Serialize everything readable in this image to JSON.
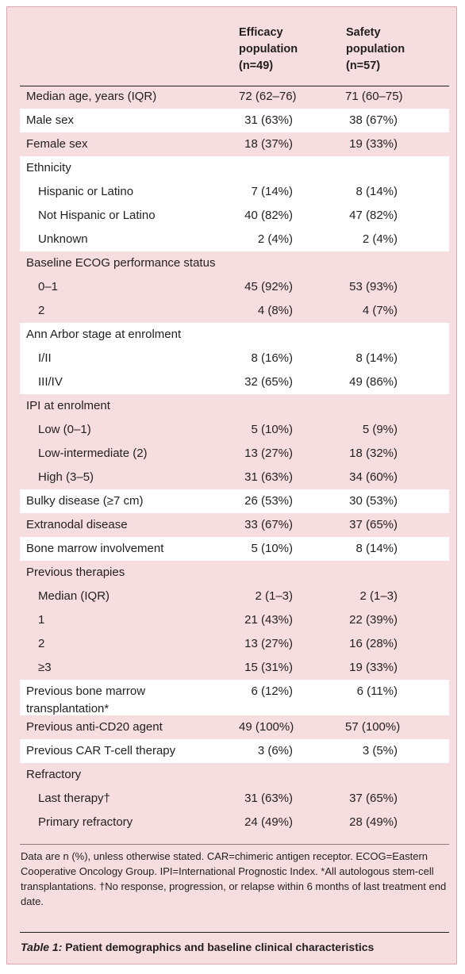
{
  "table": {
    "columns": [
      "Efficacy\npopulation\n(n=49)",
      "Safety\npopulation\n(n=57)"
    ],
    "rows": [
      {
        "label": "Median age, years (IQR)",
        "v1": "72 (62–76)",
        "v2": "71 (60–75)",
        "indent": false,
        "shade": "pink",
        "tall": false
      },
      {
        "label": "Male sex",
        "v1": "31 (63%)",
        "v2": "38 (67%)",
        "indent": false,
        "shade": "white",
        "tall": false
      },
      {
        "label": "Female sex",
        "v1": "18 (37%)",
        "v2": "19 (33%)",
        "indent": false,
        "shade": "pink",
        "tall": false
      },
      {
        "label": "Ethnicity",
        "v1": "",
        "v2": "",
        "indent": false,
        "shade": "white",
        "tall": false
      },
      {
        "label": "Hispanic or Latino",
        "v1": "7 (14%)",
        "v2": "8 (14%)",
        "indent": true,
        "shade": "white",
        "tall": false
      },
      {
        "label": "Not Hispanic or Latino",
        "v1": "40 (82%)",
        "v2": "47 (82%)",
        "indent": true,
        "shade": "white",
        "tall": false
      },
      {
        "label": "Unknown",
        "v1": "2 (4%)",
        "v2": "2 (4%)",
        "indent": true,
        "shade": "white",
        "tall": false
      },
      {
        "label": "Baseline ECOG performance status",
        "v1": "",
        "v2": "",
        "indent": false,
        "shade": "pink",
        "tall": false
      },
      {
        "label": "0–1",
        "v1": "45 (92%)",
        "v2": "53 (93%)",
        "indent": true,
        "shade": "pink",
        "tall": false
      },
      {
        "label": "2",
        "v1": "4 (8%)",
        "v2": "4 (7%)",
        "indent": true,
        "shade": "pink",
        "tall": false
      },
      {
        "label": "Ann Arbor stage at enrolment",
        "v1": "",
        "v2": "",
        "indent": false,
        "shade": "white",
        "tall": false
      },
      {
        "label": "I/II",
        "v1": "8 (16%)",
        "v2": "8 (14%)",
        "indent": true,
        "shade": "white",
        "tall": false
      },
      {
        "label": "III/IV",
        "v1": "32 (65%)",
        "v2": "49 (86%)",
        "indent": true,
        "shade": "white",
        "tall": false
      },
      {
        "label": "IPI at enrolment",
        "v1": "",
        "v2": "",
        "indent": false,
        "shade": "pink",
        "tall": false
      },
      {
        "label": "Low (0–1)",
        "v1": "5 (10%)",
        "v2": "5 (9%)",
        "indent": true,
        "shade": "pink",
        "tall": false
      },
      {
        "label": "Low-intermediate (2)",
        "v1": "13 (27%)",
        "v2": "18 (32%)",
        "indent": true,
        "shade": "pink",
        "tall": false
      },
      {
        "label": "High (3–5)",
        "v1": "31 (63%)",
        "v2": "34 (60%)",
        "indent": true,
        "shade": "pink",
        "tall": false
      },
      {
        "label": "Bulky disease (≥7 cm)",
        "v1": "26 (53%)",
        "v2": "30 (53%)",
        "indent": false,
        "shade": "white",
        "tall": false
      },
      {
        "label": "Extranodal disease",
        "v1": "33 (67%)",
        "v2": "37 (65%)",
        "indent": false,
        "shade": "pink",
        "tall": false
      },
      {
        "label": "Bone marrow involvement",
        "v1": "5 (10%)",
        "v2": "8 (14%)",
        "indent": false,
        "shade": "white",
        "tall": false
      },
      {
        "label": "Previous therapies",
        "v1": "",
        "v2": "",
        "indent": false,
        "shade": "pink",
        "tall": false
      },
      {
        "label": "Median (IQR)",
        "v1": "2 (1–3)",
        "v2": "2 (1–3)",
        "indent": true,
        "shade": "pink",
        "tall": false
      },
      {
        "label": "1",
        "v1": "21 (43%)",
        "v2": "22 (39%)",
        "indent": true,
        "shade": "pink",
        "tall": false
      },
      {
        "label": "2",
        "v1": "13 (27%)",
        "v2": "16 (28%)",
        "indent": true,
        "shade": "pink",
        "tall": false
      },
      {
        "label": "≥3",
        "v1": "15 (31%)",
        "v2": "19 (33%)",
        "indent": true,
        "shade": "pink",
        "tall": false
      },
      {
        "label": "Previous bone marrow transplantation*",
        "v1": "6 (12%)",
        "v2": "6 (11%)",
        "indent": false,
        "shade": "white",
        "tall": true
      },
      {
        "label": "Previous anti-CD20 agent",
        "v1": "49 (100%)",
        "v2": "57 (100%)",
        "indent": false,
        "shade": "pink",
        "tall": false
      },
      {
        "label": "Previous CAR T-cell therapy",
        "v1": "3 (6%)",
        "v2": "3 (5%)",
        "indent": false,
        "shade": "white",
        "tall": false
      },
      {
        "label": "Refractory",
        "v1": "",
        "v2": "",
        "indent": false,
        "shade": "pink",
        "tall": false
      },
      {
        "label": "Last therapy†",
        "v1": "31 (63%)",
        "v2": "37 (65%)",
        "indent": true,
        "shade": "pink",
        "tall": false
      },
      {
        "label": "Primary refractory",
        "v1": "24 (49%)",
        "v2": "28 (49%)",
        "indent": true,
        "shade": "pink",
        "tall": false
      }
    ]
  },
  "footnotes": "Data are n (%), unless otherwise stated. CAR=chimeric antigen receptor. ECOG=Eastern Cooperative Oncology Group. IPI=International Prognostic Index. *All autologous stem-cell transplantations. †No response, progression, or relapse within 6 months of last treatment end date.",
  "caption": {
    "number": "Table 1:",
    "text": " Patient demographics and baseline clinical characteristics"
  },
  "colors": {
    "panel": "#f5dde0",
    "white_band": "#ffffff",
    "text": "#231f20"
  }
}
